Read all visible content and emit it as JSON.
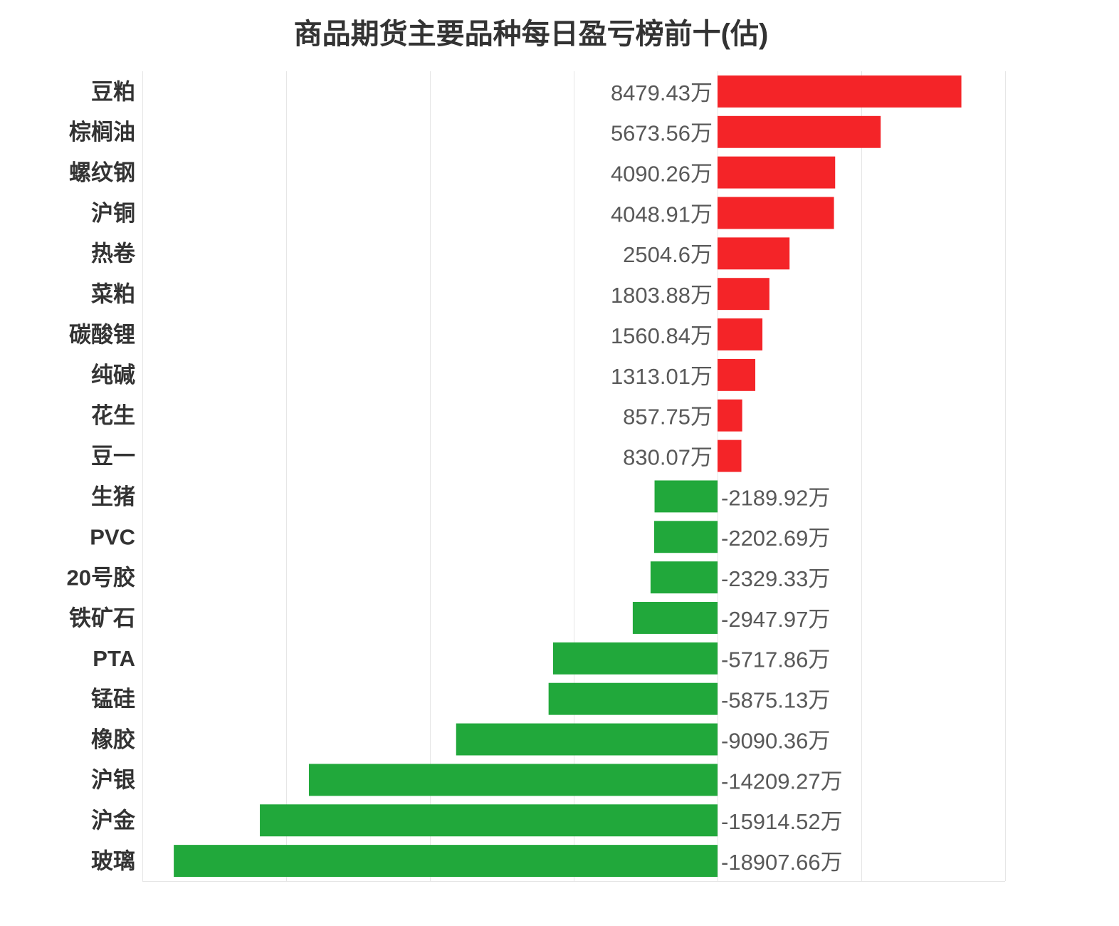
{
  "chart_data": {
    "type": "bar",
    "orientation": "horizontal",
    "title": "商品期货主要品种每日盈亏榜前十(估)",
    "categories": [
      "豆粕",
      "棕榈油",
      "螺纹钢",
      "沪铜",
      "热卷",
      "菜粕",
      "碳酸锂",
      "纯碱",
      "花生",
      "豆一",
      "生猪",
      "PVC",
      "20号胶",
      "铁矿石",
      "PTA",
      "锰硅",
      "橡胶",
      "沪银",
      "沪金",
      "玻璃"
    ],
    "values": [
      8479.43,
      5673.56,
      4090.26,
      4048.91,
      2504.6,
      1803.88,
      1560.84,
      1313.01,
      857.75,
      830.07,
      -2189.92,
      -2202.69,
      -2329.33,
      -2947.97,
      -5717.86,
      -5875.13,
      -9090.36,
      -14209.27,
      -15914.52,
      -18907.66
    ],
    "value_unit": "万",
    "xlim": [
      -20000,
      10000
    ],
    "grid": true,
    "colors": {
      "positive": "#f42428",
      "negative": "#21a83b"
    }
  }
}
